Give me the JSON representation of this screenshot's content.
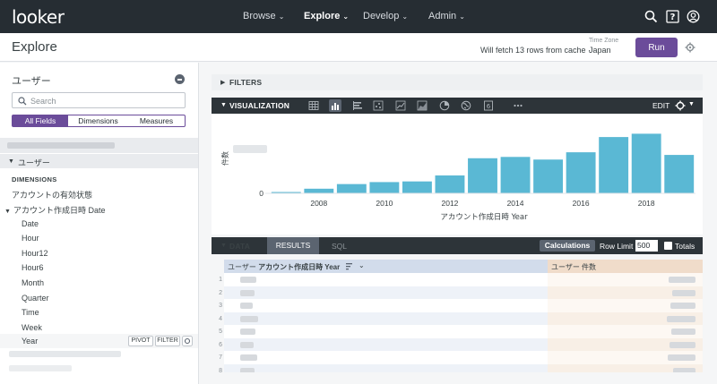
{
  "nav": {
    "logo": "looker",
    "items": [
      {
        "label": "Browse",
        "active": false
      },
      {
        "label": "Explore",
        "active": true
      },
      {
        "label": "Develop",
        "active": false
      },
      {
        "label": "Admin",
        "active": false
      }
    ]
  },
  "header": {
    "title": "Explore",
    "cache_status": "Will fetch 13 rows from cache",
    "timezone_label": "Time Zone",
    "timezone_value": "Japan",
    "run_label": "Run"
  },
  "sidebar": {
    "view_title": "ユーザー",
    "search_placeholder": "Search",
    "filter_tabs": [
      {
        "label": "All Fields",
        "active": true
      },
      {
        "label": "Dimensions",
        "active": false
      },
      {
        "label": "Measures",
        "active": false
      }
    ],
    "view_section_label": "ユーザー",
    "dimensions_label": "DIMENSIONS",
    "fields": [
      {
        "label": "アカウントの有効状態",
        "indent": 0
      },
      {
        "label": "アカウント作成日時 Date",
        "indent": 0,
        "expanded": true
      },
      {
        "label": "Date",
        "indent": 1
      },
      {
        "label": "Hour",
        "indent": 1
      },
      {
        "label": "Hour12",
        "indent": 1
      },
      {
        "label": "Hour6",
        "indent": 1
      },
      {
        "label": "Month",
        "indent": 1
      },
      {
        "label": "Quarter",
        "indent": 1
      },
      {
        "label": "Time",
        "indent": 1
      },
      {
        "label": "Week",
        "indent": 1
      },
      {
        "label": "Year",
        "indent": 1,
        "selected": true
      }
    ],
    "pivot_label": "PIVOT",
    "filter_label": "FILTER"
  },
  "filters": {
    "title": "FILTERS"
  },
  "visualization": {
    "title": "VISUALIZATION",
    "edit_label": "EDIT",
    "types": [
      "table-icon",
      "column-icon",
      "bar-icon",
      "scatter-icon",
      "line-icon",
      "area-icon",
      "pie-icon",
      "map-icon",
      "single-value-icon",
      "more-icon"
    ]
  },
  "chart_data": {
    "type": "bar",
    "x": [
      2007,
      2008,
      2009,
      2010,
      2011,
      2012,
      2013,
      2014,
      2015,
      2016,
      2017,
      2018,
      2019
    ],
    "values": [
      2,
      7,
      14,
      17,
      18,
      27,
      53,
      55,
      51,
      62,
      85,
      90,
      58
    ],
    "x_tick_labels": [
      "2008",
      "2010",
      "2012",
      "2014",
      "2016",
      "2018"
    ],
    "x_ticks": [
      2008,
      2010,
      2012,
      2014,
      2016,
      2018
    ],
    "xlabel": "アカウント作成日時 Year",
    "ylabel": "件数",
    "y_tick_label": "0",
    "ylim": [
      0,
      100
    ],
    "bar_color": "#5ab8d4"
  },
  "data": {
    "title": "DATA",
    "tab_results": "RESULTS",
    "tab_sql": "SQL",
    "calculations_label": "Calculations",
    "row_limit_label": "Row Limit",
    "row_limit_value": "500",
    "totals_label": "Totals",
    "dimension_header_prefix": "ユーザー",
    "dimension_header_field": "アカウント作成日時 Year",
    "measure_header": "ユーザー 件数",
    "row_numbers": [
      "1",
      "2",
      "3",
      "4",
      "5",
      "6",
      "7",
      "8"
    ]
  }
}
